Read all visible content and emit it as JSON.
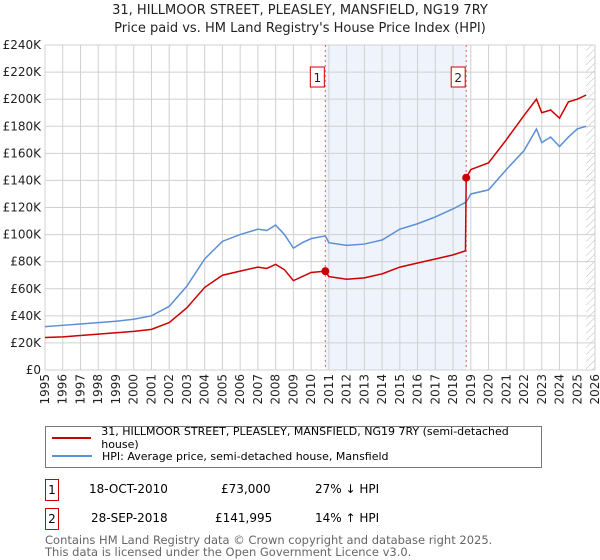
{
  "title": "31, HILLMOOR STREET, PLEASLEY, MANSFIELD, NG19 7RY",
  "subtitle": "Price paid vs. HM Land Registry's House Price Index (HPI)",
  "chart_data": {
    "type": "line",
    "ylim": [
      0,
      240000
    ],
    "xlim": [
      1995,
      2026
    ],
    "yticks": [
      {
        "v": 0,
        "l": "£0"
      },
      {
        "v": 20000,
        "l": "£20K"
      },
      {
        "v": 40000,
        "l": "£40K"
      },
      {
        "v": 60000,
        "l": "£60K"
      },
      {
        "v": 80000,
        "l": "£80K"
      },
      {
        "v": 100000,
        "l": "£100K"
      },
      {
        "v": 120000,
        "l": "£120K"
      },
      {
        "v": 140000,
        "l": "£140K"
      },
      {
        "v": 160000,
        "l": "£160K"
      },
      {
        "v": 180000,
        "l": "£180K"
      },
      {
        "v": 200000,
        "l": "£200K"
      },
      {
        "v": 220000,
        "l": "£220K"
      },
      {
        "v": 240000,
        "l": "£240K"
      }
    ],
    "xticks": [
      "1995",
      "1996",
      "1997",
      "1998",
      "1999",
      "2000",
      "2001",
      "2002",
      "2003",
      "2004",
      "2005",
      "2006",
      "2007",
      "2008",
      "2009",
      "2010",
      "2011",
      "2012",
      "2013",
      "2014",
      "2015",
      "2016",
      "2017",
      "2018",
      "2019",
      "2020",
      "2021",
      "2022",
      "2023",
      "2024",
      "2025",
      "2026"
    ],
    "shaded_range": [
      2010.8,
      2018.74
    ],
    "hatched_from": 2025.5,
    "series": [
      {
        "name": "31, HILLMOOR STREET, PLEASLEY, MANSFIELD, NG19 7RY (semi-detached house)",
        "color": "#cc0000",
        "x": [
          1995,
          1996,
          1997,
          1998,
          1999,
          2000,
          2001,
          2002,
          2003,
          2004,
          2005,
          2006,
          2007,
          2007.5,
          2008,
          2008.5,
          2009,
          2009.5,
          2010,
          2010.8,
          2011,
          2012,
          2013,
          2014,
          2015,
          2016,
          2017,
          2018,
          2018.7,
          2018.74,
          2019,
          2020,
          2021,
          2022,
          2022.7,
          2023,
          2023.5,
          2024,
          2024.5,
          2025,
          2025.5
        ],
        "y": [
          24000,
          24500,
          25500,
          26500,
          27500,
          28500,
          30000,
          35000,
          46000,
          61000,
          70000,
          73000,
          76000,
          75000,
          78000,
          74000,
          66000,
          69000,
          72000,
          73000,
          69000,
          67000,
          68000,
          71000,
          76000,
          79000,
          82000,
          85000,
          88000,
          141995,
          148000,
          153000,
          170000,
          188000,
          200000,
          190000,
          192000,
          186000,
          198000,
          200000,
          203000
        ]
      },
      {
        "name": "HPI: Average price, semi-detached house, Mansfield",
        "color": "#5b8fd6",
        "x": [
          1995,
          1996,
          1997,
          1998,
          1999,
          2000,
          2001,
          2002,
          2003,
          2004,
          2005,
          2006,
          2007,
          2007.5,
          2008,
          2008.5,
          2009,
          2009.5,
          2010,
          2010.8,
          2011,
          2012,
          2013,
          2014,
          2015,
          2016,
          2017,
          2018,
          2018.74,
          2019,
          2020,
          2021,
          2022,
          2022.7,
          2023,
          2023.5,
          2024,
          2024.5,
          2025,
          2025.5
        ],
        "y": [
          32000,
          33000,
          34000,
          35000,
          36000,
          37500,
          40000,
          47000,
          62000,
          82000,
          95000,
          100000,
          104000,
          103000,
          107000,
          100000,
          90000,
          94000,
          97000,
          99000,
          94000,
          92000,
          93000,
          96000,
          104000,
          108000,
          113000,
          119000,
          124000,
          130000,
          133000,
          148000,
          162000,
          178000,
          168000,
          172000,
          165000,
          172000,
          178000,
          180000
        ]
      }
    ],
    "sales": [
      {
        "label": "1",
        "x": 2010.8,
        "y": 73000
      },
      {
        "label": "2",
        "x": 2018.74,
        "y": 141995
      }
    ]
  },
  "legend": {
    "red": "31, HILLMOOR STREET, PLEASLEY, MANSFIELD, NG19 7RY (semi-detached house)",
    "blue": "HPI: Average price, semi-detached house, Mansfield"
  },
  "transactions": [
    {
      "num": "1",
      "date": "18-OCT-2010",
      "price": "£73,000",
      "hpi": "27% ↓ HPI"
    },
    {
      "num": "2",
      "date": "28-SEP-2018",
      "price": "£141,995",
      "hpi": "14% ↑ HPI"
    }
  ],
  "footer": [
    "Contains HM Land Registry data © Crown copyright and database right 2025.",
    "This data is licensed under the Open Government Licence v3.0."
  ]
}
